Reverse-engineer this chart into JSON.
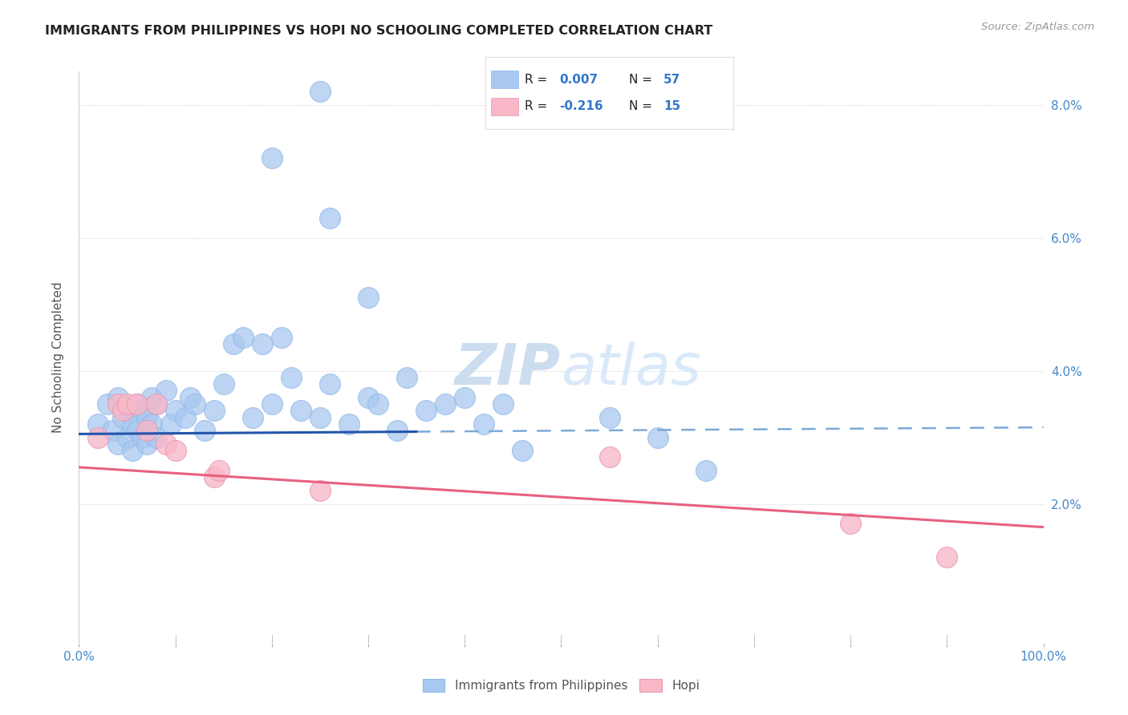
{
  "title": "IMMIGRANTS FROM PHILIPPINES VS HOPI NO SCHOOLING COMPLETED CORRELATION CHART",
  "source": "Source: ZipAtlas.com",
  "ylabel": "No Schooling Completed",
  "xlim": [
    0.0,
    100.0
  ],
  "ylim": [
    -0.1,
    8.5
  ],
  "legend1_R": "0.007",
  "legend1_N": "57",
  "legend2_R": "-0.216",
  "legend2_N": "15",
  "blue_color": "#A8C8F0",
  "pink_color": "#F8B8C8",
  "trendline_blue": "#2255AA",
  "trendline_pink": "#E86080",
  "watermark_zip": "ZIP",
  "watermark_atlas": "atlas",
  "blue_scatter": [
    [
      2.0,
      3.2
    ],
    [
      3.0,
      3.5
    ],
    [
      3.5,
      3.1
    ],
    [
      4.0,
      3.6
    ],
    [
      4.0,
      2.9
    ],
    [
      4.5,
      3.3
    ],
    [
      5.0,
      3.0
    ],
    [
      5.0,
      3.4
    ],
    [
      5.5,
      3.2
    ],
    [
      5.5,
      2.8
    ],
    [
      6.0,
      3.5
    ],
    [
      6.0,
      3.1
    ],
    [
      6.5,
      3.4
    ],
    [
      6.5,
      3.0
    ],
    [
      7.0,
      3.3
    ],
    [
      7.0,
      2.9
    ],
    [
      7.5,
      3.6
    ],
    [
      7.5,
      3.2
    ],
    [
      8.0,
      3.5
    ],
    [
      8.0,
      3.0
    ],
    [
      9.0,
      3.7
    ],
    [
      9.5,
      3.2
    ],
    [
      10.0,
      3.4
    ],
    [
      11.0,
      3.3
    ],
    [
      11.5,
      3.6
    ],
    [
      12.0,
      3.5
    ],
    [
      13.0,
      3.1
    ],
    [
      14.0,
      3.4
    ],
    [
      15.0,
      3.8
    ],
    [
      16.0,
      4.4
    ],
    [
      17.0,
      4.5
    ],
    [
      18.0,
      3.3
    ],
    [
      19.0,
      4.4
    ],
    [
      20.0,
      3.5
    ],
    [
      21.0,
      4.5
    ],
    [
      22.0,
      3.9
    ],
    [
      23.0,
      3.4
    ],
    [
      25.0,
      3.3
    ],
    [
      26.0,
      3.8
    ],
    [
      28.0,
      3.2
    ],
    [
      30.0,
      3.6
    ],
    [
      31.0,
      3.5
    ],
    [
      33.0,
      3.1
    ],
    [
      34.0,
      3.9
    ],
    [
      36.0,
      3.4
    ],
    [
      38.0,
      3.5
    ],
    [
      40.0,
      3.6
    ],
    [
      42.0,
      3.2
    ],
    [
      44.0,
      3.5
    ],
    [
      46.0,
      2.8
    ],
    [
      55.0,
      3.3
    ],
    [
      60.0,
      3.0
    ],
    [
      65.0,
      2.5
    ],
    [
      30.0,
      5.1
    ],
    [
      26.0,
      6.3
    ],
    [
      20.0,
      7.2
    ],
    [
      25.0,
      8.2
    ]
  ],
  "pink_scatter": [
    [
      2.0,
      3.0
    ],
    [
      4.0,
      3.5
    ],
    [
      4.5,
      3.4
    ],
    [
      5.0,
      3.5
    ],
    [
      6.0,
      3.5
    ],
    [
      7.0,
      3.1
    ],
    [
      8.0,
      3.5
    ],
    [
      9.0,
      2.9
    ],
    [
      10.0,
      2.8
    ],
    [
      14.0,
      2.4
    ],
    [
      14.5,
      2.5
    ],
    [
      25.0,
      2.2
    ],
    [
      55.0,
      2.7
    ],
    [
      80.0,
      1.7
    ],
    [
      90.0,
      1.2
    ]
  ],
  "blue_trend_x1": 0,
  "blue_trend_y1": 3.05,
  "blue_trend_x2": 100,
  "blue_trend_y2": 3.15,
  "blue_solid_end": 35,
  "pink_trend_x1": 0,
  "pink_trend_y1": 2.55,
  "pink_trend_x2": 100,
  "pink_trend_y2": 1.65
}
